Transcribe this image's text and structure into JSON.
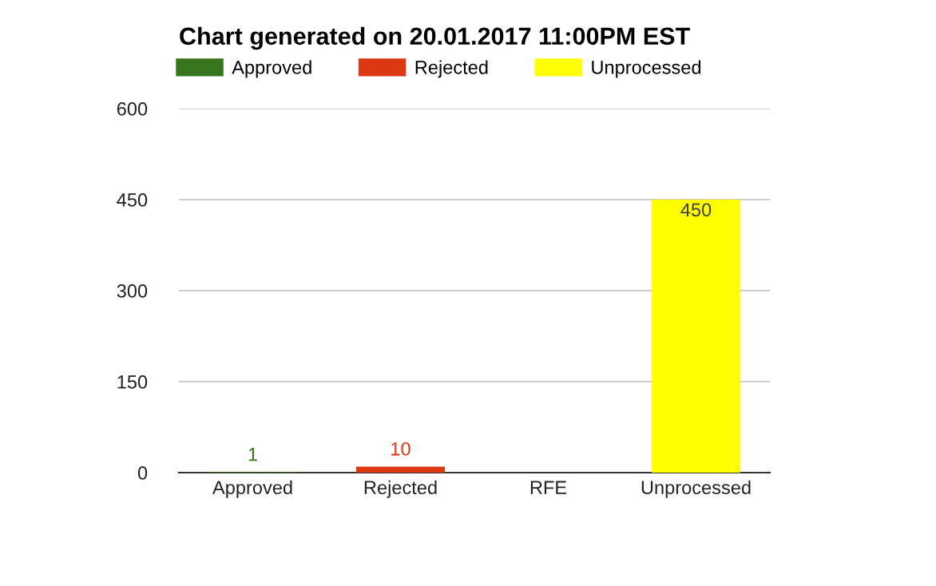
{
  "chart_data": {
    "type": "bar",
    "title": "Chart generated on 20.01.2017 11:00PM EST",
    "categories": [
      "Approved",
      "Rejected",
      "RFE",
      "Unprocessed"
    ],
    "series": [
      {
        "name": "Approved",
        "color": "#38761d",
        "values": [
          1,
          null,
          null,
          null
        ]
      },
      {
        "name": "Rejected",
        "color": "#dc3912",
        "values": [
          null,
          10,
          null,
          null
        ]
      },
      {
        "name": "Unprocessed",
        "color": "#ffff00",
        "values": [
          null,
          null,
          null,
          450
        ]
      }
    ],
    "data_labels": true,
    "ylim": [
      0,
      600
    ],
    "yticks": [
      0,
      150,
      300,
      450,
      600
    ],
    "grid": "y",
    "legend": "top left"
  }
}
